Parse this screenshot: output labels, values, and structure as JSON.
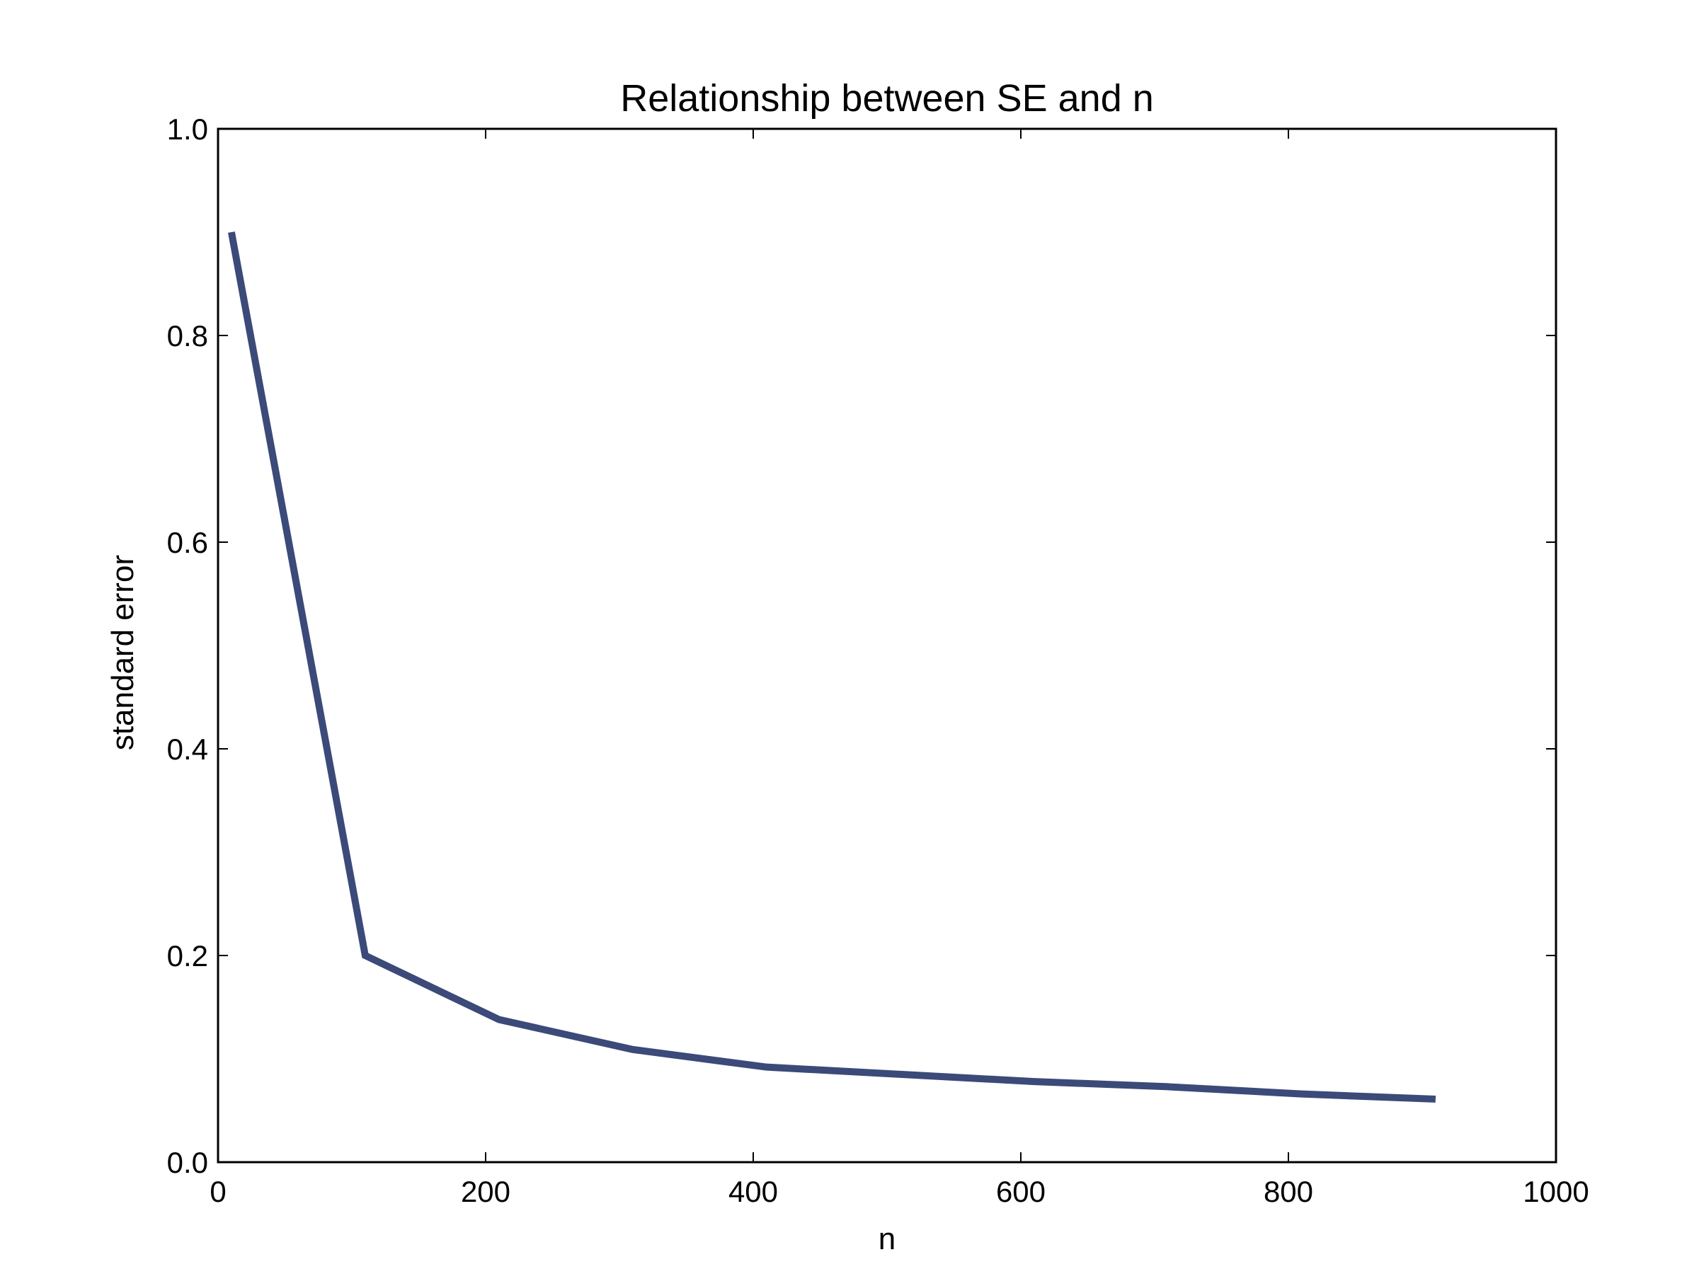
{
  "chart_data": {
    "type": "line",
    "title": "Relationship between SE and n",
    "xlabel": "n",
    "ylabel": "standard error",
    "xlim": [
      0,
      1000
    ],
    "ylim": [
      0.0,
      1.0
    ],
    "x_ticks": [
      "0",
      "200",
      "400",
      "600",
      "800",
      "1000"
    ],
    "y_ticks": [
      "0.0",
      "0.2",
      "0.4",
      "0.6",
      "0.8",
      "1.0"
    ],
    "grid": false,
    "legend": "none",
    "series": [
      {
        "color": "#3b4a78",
        "x": [
          10,
          110,
          210,
          310,
          410,
          510,
          610,
          710,
          810,
          910
        ],
        "y": [
          0.9,
          0.2,
          0.138,
          0.109,
          0.092,
          0.085,
          0.078,
          0.073,
          0.066,
          0.061
        ]
      }
    ]
  }
}
